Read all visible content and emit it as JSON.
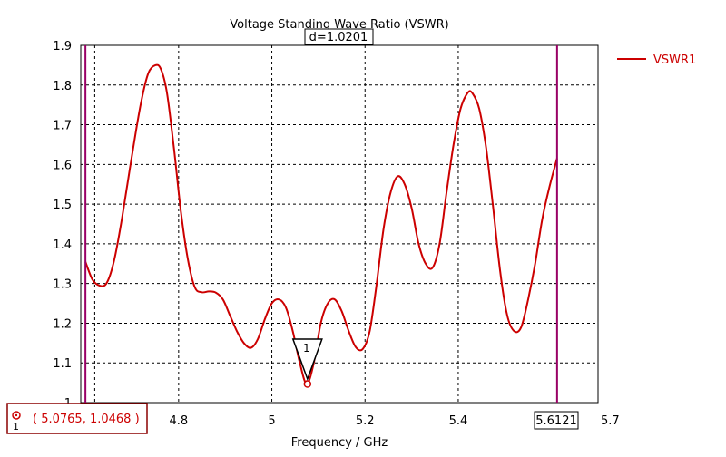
{
  "chart_data": {
    "type": "line",
    "title": "Voltage Standing Wave Ratio (VSWR)",
    "xlabel": "Frequency / GHz",
    "ylabel": "",
    "xlim": [
      4.59,
      5.7
    ],
    "ylim": [
      1.0,
      1.9
    ],
    "x_ticks": [
      "4.8",
      "5",
      "5.2",
      "5.4",
      "5.7"
    ],
    "x_tick_values": [
      4.8,
      5.0,
      5.2,
      5.4,
      5.7
    ],
    "y_ticks": [
      "1",
      "1.1",
      "1.2",
      "1.3",
      "1.4",
      "1.5",
      "1.6",
      "1.7",
      "1.8",
      "1.9"
    ],
    "y_tick_values": [
      1.0,
      1.1,
      1.2,
      1.3,
      1.4,
      1.5,
      1.6,
      1.7,
      1.8,
      1.9
    ],
    "grid": true,
    "legend_position": "top-right",
    "series": [
      {
        "name": "VSWR1",
        "color": "#cc0000",
        "x": [
          4.6,
          4.615,
          4.63,
          4.645,
          4.66,
          4.675,
          4.69,
          4.705,
          4.72,
          4.735,
          4.75,
          4.762,
          4.775,
          4.79,
          4.805,
          4.82,
          4.835,
          4.85,
          4.865,
          4.88,
          4.895,
          4.91,
          4.925,
          4.94,
          4.955,
          4.97,
          4.985,
          5.0,
          5.015,
          5.03,
          5.045,
          5.06,
          5.075,
          5.09,
          5.105,
          5.12,
          5.135,
          5.15,
          5.165,
          5.18,
          5.195,
          5.21,
          5.225,
          5.24,
          5.255,
          5.27,
          5.285,
          5.3,
          5.315,
          5.33,
          5.345,
          5.36,
          5.375,
          5.39,
          5.405,
          5.42,
          5.43,
          5.445,
          5.46,
          5.475,
          5.49,
          5.505,
          5.52,
          5.535,
          5.55,
          5.565,
          5.58,
          5.595,
          5.612
        ],
        "y": [
          1.355,
          1.31,
          1.295,
          1.3,
          1.35,
          1.44,
          1.55,
          1.66,
          1.76,
          1.83,
          1.85,
          1.84,
          1.78,
          1.64,
          1.48,
          1.36,
          1.29,
          1.278,
          1.28,
          1.277,
          1.26,
          1.22,
          1.18,
          1.15,
          1.138,
          1.16,
          1.21,
          1.25,
          1.26,
          1.24,
          1.18,
          1.1,
          1.047,
          1.1,
          1.2,
          1.25,
          1.26,
          1.23,
          1.18,
          1.14,
          1.135,
          1.18,
          1.3,
          1.44,
          1.53,
          1.57,
          1.55,
          1.49,
          1.4,
          1.35,
          1.34,
          1.4,
          1.53,
          1.65,
          1.74,
          1.78,
          1.78,
          1.74,
          1.64,
          1.49,
          1.33,
          1.22,
          1.18,
          1.19,
          1.26,
          1.35,
          1.46,
          1.54,
          1.615
        ]
      }
    ],
    "markers": {
      "left_freq": 4.6,
      "right_freq": 5.6121,
      "right_label": "5.6121",
      "delta_label": "d=1.0201",
      "point_id": "1",
      "point_x": 5.0765,
      "point_y": 1.0468,
      "point_readout": "( 5.0765, 1.0468 )",
      "marker_color": "#990066",
      "readout_border_color": "#8b0000"
    }
  }
}
